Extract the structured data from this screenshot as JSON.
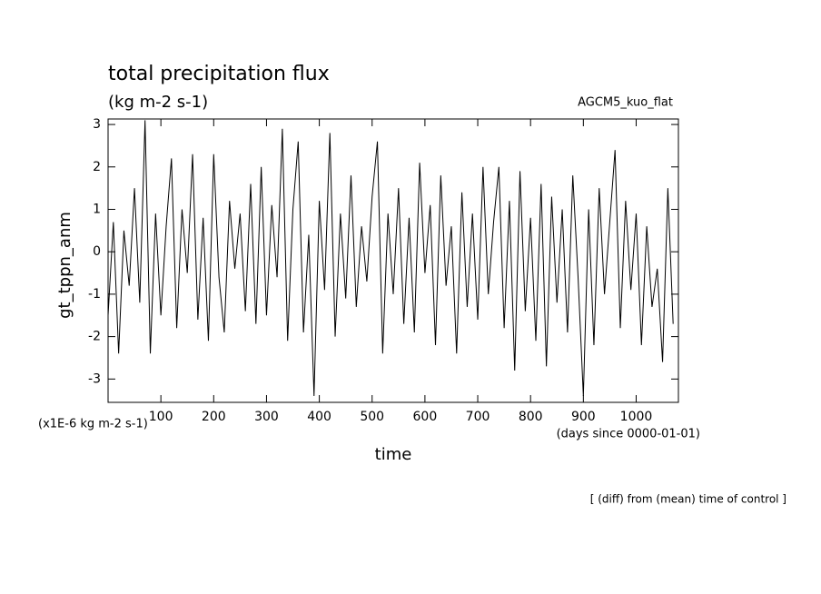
{
  "chart_data": {
    "type": "line",
    "title": "total precipitation flux",
    "subtitle": "(kg m-2 s-1)",
    "annotation": "AGCM5_kuo_flat",
    "y_label": "gt_tppn_anm",
    "y_unit_label": "(x1E-6 kg m-2 s-1)",
    "x_unit_label": "(days since 0000-01-01)",
    "x_label": "time",
    "footnote": "[ (diff) from (mean) time of control ]",
    "color": "#000000",
    "xlim": [
      0,
      1080
    ],
    "xticks": [
      100,
      200,
      300,
      400,
      500,
      600,
      700,
      800,
      900,
      1000
    ],
    "ylim": [
      -3.55,
      3.13
    ],
    "yticks": [
      -3,
      -2,
      -1,
      0,
      1,
      2,
      3
    ],
    "x": [
      0,
      10,
      20,
      30,
      40,
      50,
      60,
      70,
      80,
      90,
      100,
      110,
      120,
      130,
      140,
      150,
      160,
      170,
      180,
      190,
      200,
      210,
      220,
      230,
      240,
      250,
      260,
      270,
      280,
      290,
      300,
      310,
      320,
      330,
      340,
      350,
      360,
      370,
      380,
      390,
      400,
      410,
      420,
      430,
      440,
      450,
      460,
      470,
      480,
      490,
      500,
      510,
      520,
      530,
      540,
      550,
      560,
      570,
      580,
      590,
      600,
      610,
      620,
      630,
      640,
      650,
      660,
      670,
      680,
      690,
      700,
      710,
      720,
      730,
      740,
      750,
      760,
      770,
      780,
      790,
      800,
      810,
      820,
      830,
      840,
      850,
      860,
      870,
      880,
      890,
      900,
      910,
      920,
      930,
      940,
      950,
      960,
      970,
      980,
      990,
      1000,
      1010,
      1020,
      1030,
      1040,
      1050,
      1060,
      1070
    ],
    "values": [
      -1.5,
      0.7,
      -2.4,
      0.5,
      -0.8,
      1.5,
      -1.2,
      3.1,
      -2.4,
      0.9,
      -1.5,
      0.6,
      2.2,
      -1.8,
      1.0,
      -0.5,
      2.3,
      -1.6,
      0.8,
      -2.1,
      2.3,
      -0.6,
      -1.9,
      1.2,
      -0.4,
      0.9,
      -1.4,
      1.6,
      -1.7,
      2.0,
      -1.5,
      1.1,
      -0.6,
      2.9,
      -2.1,
      1.0,
      2.6,
      -1.9,
      0.4,
      -3.4,
      1.2,
      -0.9,
      2.8,
      -2.0,
      0.9,
      -1.1,
      1.8,
      -1.3,
      0.6,
      -0.7,
      1.3,
      2.6,
      -2.4,
      0.9,
      -1.0,
      1.5,
      -1.7,
      0.8,
      -1.9,
      2.1,
      -0.5,
      1.1,
      -2.2,
      1.8,
      -0.8,
      0.6,
      -2.4,
      1.4,
      -1.3,
      0.9,
      -1.6,
      2.0,
      -1.0,
      0.7,
      2.0,
      -1.8,
      1.2,
      -2.8,
      1.9,
      -1.4,
      0.8,
      -2.1,
      1.6,
      -2.7,
      1.3,
      -1.2,
      1.0,
      -1.9,
      1.8,
      -0.6,
      -3.4,
      1.0,
      -2.2,
      1.5,
      -1.0,
      0.7,
      2.4,
      -1.8,
      1.2,
      -0.9,
      0.9,
      -2.2,
      0.6,
      -1.3,
      -0.4,
      -2.6,
      1.5,
      -1.7
    ]
  }
}
